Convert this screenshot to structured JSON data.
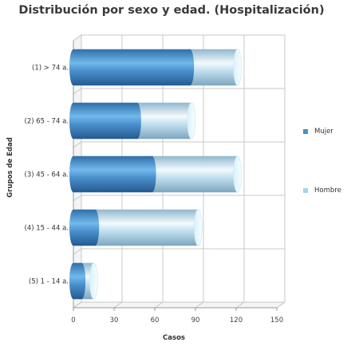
{
  "chart_data": {
    "type": "bar",
    "title": "Distribución por sexo y edad. (Hospitalización)",
    "xlabel": "Casos",
    "ylabel": "Grupos de Edad",
    "categories": [
      "(1) > 74 a.",
      "(2) 65 - 74 a.",
      "(3) 45 - 64 a.",
      "(4) 15 - 44 a.",
      "(5) 1 - 14 a."
    ],
    "series": [
      {
        "name": "Mujer",
        "values": [
          86,
          47,
          58,
          16,
          6
        ]
      },
      {
        "name": "Hombre",
        "values": [
          35,
          40,
          63,
          76,
          9
        ]
      }
    ],
    "stacked": true,
    "orientation": "horizontal",
    "xlim": [
      0,
      150
    ],
    "xticks": [
      0,
      30,
      60,
      90,
      120,
      150
    ],
    "grid": true,
    "legend_position": "right",
    "colors": {
      "Mujer": "#4a8fcc",
      "Hombre": "#a9d2ee"
    }
  }
}
